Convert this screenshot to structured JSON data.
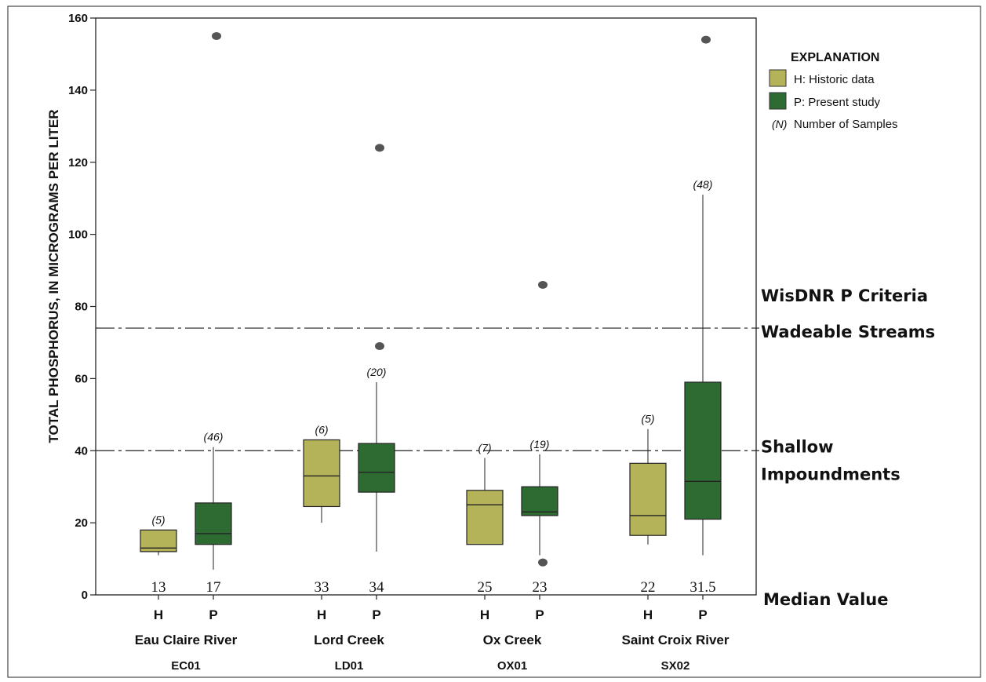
{
  "chart_data": {
    "type": "boxplot",
    "ylabel": "TOTAL PHOSPHORUS, IN MICROGRAMS PER LITER",
    "ylim": [
      0,
      160
    ],
    "yticks": [
      0,
      20,
      40,
      60,
      80,
      100,
      120,
      140,
      160
    ],
    "colors": {
      "historic": "#b5b35a",
      "present": "#2e6b32",
      "outlier": "#555555"
    },
    "sites": [
      {
        "name": "Eau Claire River",
        "code": "EC01",
        "boxes": [
          {
            "group": "H",
            "type": "historic",
            "n": "(5)",
            "median_label": "13",
            "min": 11,
            "q1": 12,
            "median": 13,
            "q3": 18,
            "max": 18,
            "outliers": []
          },
          {
            "group": "P",
            "type": "present",
            "n": "(46)",
            "median_label": "17",
            "min": 7,
            "q1": 14,
            "median": 17,
            "q3": 25.5,
            "max": 41,
            "outliers": [
              155
            ]
          }
        ]
      },
      {
        "name": "Lord Creek",
        "code": "LD01",
        "boxes": [
          {
            "group": "H",
            "type": "historic",
            "n": "(6)",
            "median_label": "33",
            "min": 20,
            "q1": 24.5,
            "median": 33,
            "q3": 43,
            "max": 43,
            "outliers": []
          },
          {
            "group": "P",
            "type": "present",
            "n": "(20)",
            "median_label": "34",
            "min": 12,
            "q1": 28.5,
            "median": 34,
            "q3": 42,
            "max": 59,
            "outliers": [
              124,
              69
            ]
          }
        ]
      },
      {
        "name": "Ox Creek",
        "code": "OX01",
        "boxes": [
          {
            "group": "H",
            "type": "historic",
            "n": "(7)",
            "median_label": "25",
            "min": 14,
            "q1": 14,
            "median": 25,
            "q3": 29,
            "max": 38,
            "outliers": []
          },
          {
            "group": "P",
            "type": "present",
            "n": "(19)",
            "median_label": "23",
            "min": 11,
            "q1": 22,
            "median": 23,
            "q3": 30,
            "max": 39,
            "outliers": [
              86,
              9
            ]
          }
        ]
      },
      {
        "name": "Saint Croix River",
        "code": "SX02",
        "boxes": [
          {
            "group": "H",
            "type": "historic",
            "n": "(5)",
            "median_label": "22",
            "min": 14,
            "q1": 16.5,
            "median": 22,
            "q3": 36.5,
            "max": 46,
            "outliers": []
          },
          {
            "group": "P",
            "type": "present",
            "n": "(48)",
            "median_label": "31.5",
            "min": 11,
            "q1": 21,
            "median": 31.5,
            "q3": 59,
            "max": 111,
            "outliers": [
              154
            ]
          }
        ]
      }
    ],
    "reference_lines": [
      {
        "value": 74,
        "label_line1": "WisDNR P Criteria",
        "label_line2": "Wadeable Streams"
      },
      {
        "value": 40,
        "label_line1": "Shallow",
        "label_line2": "Impoundments"
      }
    ],
    "median_row_label": "Median Value",
    "legend": {
      "title": "EXPLANATION",
      "placement": "top-right",
      "items": [
        {
          "kind": "historic",
          "label": "H: Historic data"
        },
        {
          "kind": "present",
          "label": "P: Present study"
        },
        {
          "kind": "n",
          "symbol": "(N)",
          "label": "Number of Samples"
        }
      ]
    }
  }
}
